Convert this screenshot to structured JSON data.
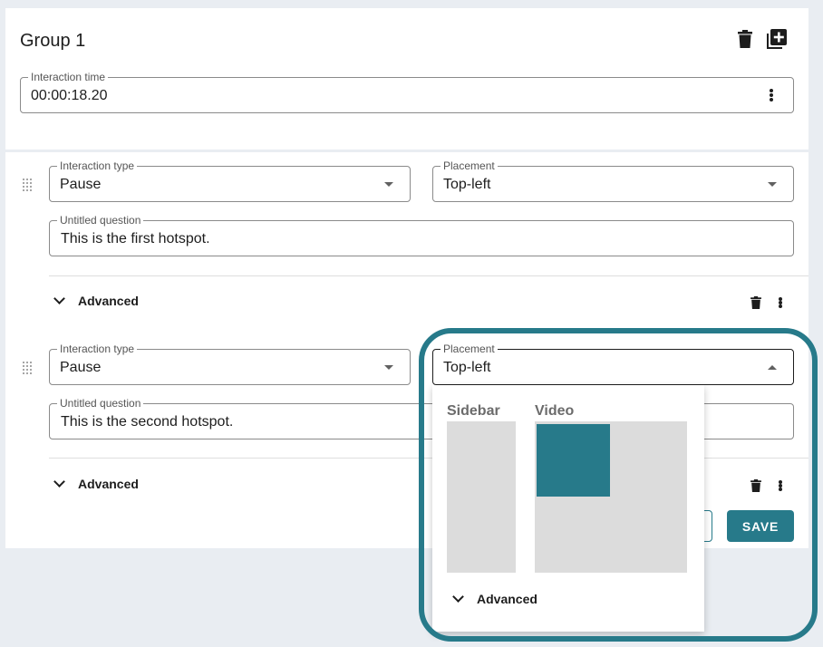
{
  "group": {
    "title": "Group 1",
    "interaction_time": {
      "label": "Interaction time",
      "value": "00:00:18.20"
    }
  },
  "items": [
    {
      "interaction_type": {
        "label": "Interaction type",
        "value": "Pause"
      },
      "placement": {
        "label": "Placement",
        "value": "Top-left"
      },
      "question": {
        "label": "Untitled question",
        "value": "This is the first hotspot."
      },
      "advanced_label": "Advanced"
    },
    {
      "interaction_type": {
        "label": "Interaction type",
        "value": "Pause"
      },
      "placement": {
        "label": "Placement",
        "value": "Top-left"
      },
      "question": {
        "label": "Untitled question",
        "value": "This is the second hotspot."
      },
      "advanced_label": "Advanced"
    }
  ],
  "actions": {
    "save_label": "SAVE"
  },
  "placement_dropdown": {
    "sidebar_label": "Sidebar",
    "video_label": "Video",
    "advanced_label": "Advanced"
  },
  "colors": {
    "accent": "#277a8a",
    "placeholder_area": "#dcdcdc"
  }
}
